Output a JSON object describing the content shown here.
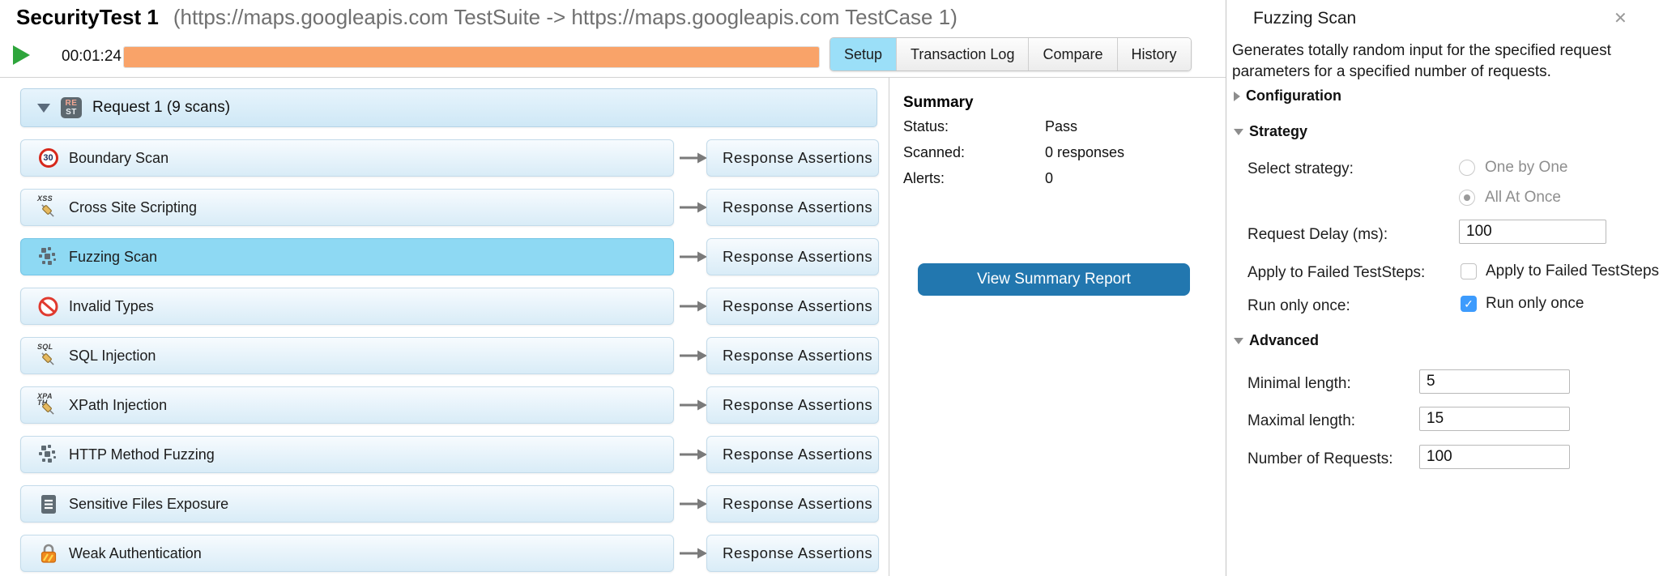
{
  "header": {
    "test_name": "SecurityTest 1",
    "test_path": "(https://maps.googleapis.com TestSuite -> https://maps.googleapis.com TestCase 1)",
    "timer": "00:01:24",
    "progress_percent": 100,
    "tabs": [
      {
        "label": "Setup",
        "selected": true
      },
      {
        "label": "Transaction Log",
        "selected": false
      },
      {
        "label": "Compare",
        "selected": false
      },
      {
        "label": "History",
        "selected": false
      }
    ]
  },
  "scan_list": {
    "group_label": "Request 1 (9 scans)",
    "group_icon": "rest-request-icon",
    "expander_icon": "triangle-down-icon",
    "assertion_button_label": "Response Assertions",
    "scans": [
      {
        "name": "Boundary Scan",
        "icon": "speed-limit-30-icon",
        "selected": false
      },
      {
        "name": "Cross Site Scripting",
        "icon": "xss-syringe-icon",
        "selected": false
      },
      {
        "name": "Fuzzing Scan",
        "icon": "fuzzing-icon",
        "selected": true
      },
      {
        "name": "Invalid Types",
        "icon": "prohibited-icon",
        "selected": false
      },
      {
        "name": "SQL Injection",
        "icon": "sql-syringe-icon",
        "selected": false
      },
      {
        "name": "XPath Injection",
        "icon": "xpath-syringe-icon",
        "selected": false
      },
      {
        "name": "HTTP Method Fuzzing",
        "icon": "fuzzing-icon",
        "selected": false
      },
      {
        "name": "Sensitive Files Exposure",
        "icon": "document-icon",
        "selected": false
      },
      {
        "name": "Weak Authentication",
        "icon": "padlock-icon",
        "selected": false
      }
    ]
  },
  "summary": {
    "title": "Summary",
    "rows": [
      {
        "label": "Status:",
        "value": "Pass"
      },
      {
        "label": "Scanned:",
        "value": "0 responses"
      },
      {
        "label": "Alerts:",
        "value": "0"
      }
    ],
    "button_label": "View Summary Report"
  },
  "inspector": {
    "title": "Fuzzing Scan",
    "close_icon": "✕",
    "description_line1": "Generates totally random input for the specified request",
    "description_line2": "parameters for a specified number of requests.",
    "configuration_header": "Configuration",
    "strategy": {
      "header": "Strategy",
      "select_strategy_label": "Select strategy:",
      "options": [
        {
          "label": "One by One",
          "selected": false
        },
        {
          "label": "All At Once",
          "selected": true
        }
      ],
      "request_delay_label": "Request Delay (ms):",
      "request_delay_value": "100",
      "apply_failed_label": "Apply to Failed TestSteps:",
      "apply_failed_checkbox_label": "Apply to Failed TestSteps",
      "apply_failed_checked": false,
      "run_once_label": "Run only once:",
      "run_once_checkbox_label": "Run only once",
      "run_once_checked": true
    },
    "advanced": {
      "header": "Advanced",
      "fields": [
        {
          "label": "Minimal length:",
          "value": "5"
        },
        {
          "label": "Maximal length:",
          "value": "15"
        },
        {
          "label": "Number of Requests:",
          "value": "100"
        }
      ]
    }
  },
  "colors": {
    "progress_orange": "#F9A369",
    "selected_tab": "#9BDFF8",
    "selected_scan": "#8ED9F3",
    "button_blue": "#2277AF",
    "checkbox_blue": "#3D9BFD",
    "play_green": "#2EA53C"
  }
}
